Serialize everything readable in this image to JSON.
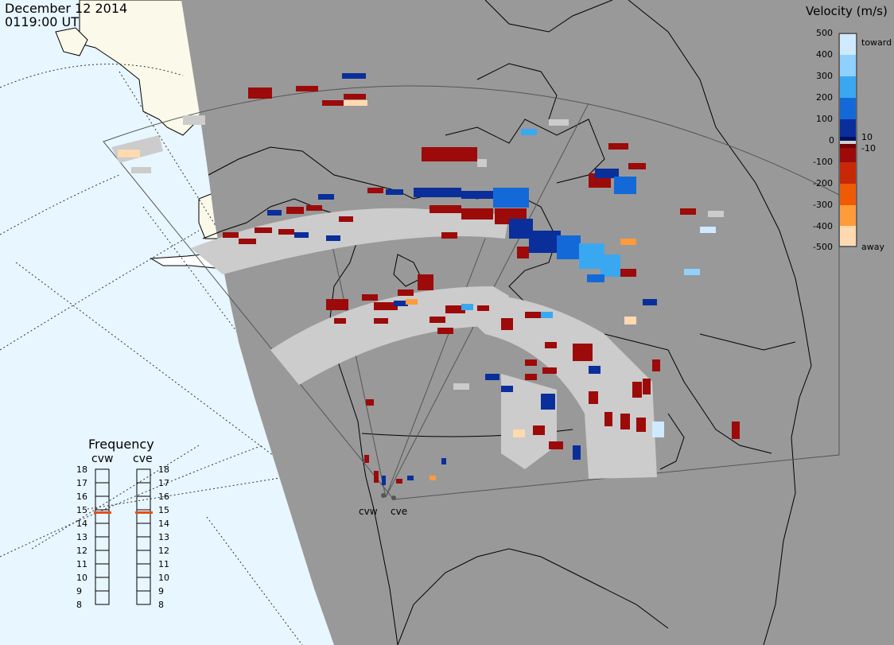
{
  "header": {
    "date": "December 12 2014",
    "time": "0119:00 UT"
  },
  "velocity_legend": {
    "title": "Velocity (m/s)",
    "ticks": [
      "500",
      "400",
      "300",
      "200",
      "100",
      "10",
      "0",
      "-10",
      "-100",
      "-200",
      "-300",
      "-400",
      "-500"
    ],
    "toward_label": "toward",
    "away_label": "away",
    "colors": {
      "toward_500": "#cfeaff",
      "toward_400": "#8fd0ff",
      "toward_300": "#3aa8f0",
      "toward_200": "#1469d8",
      "toward_100": "#0a2f9a",
      "toward_10": "#001060",
      "zero": "#d0d0d0",
      "away_10": "#700000",
      "away_100": "#9c0a0a",
      "away_200": "#c82808",
      "away_300": "#ee5a06",
      "away_400": "#ff9b3a",
      "away_500": "#ffd9b0",
      "ground_scatter": "#cccccc"
    }
  },
  "frequency_panel": {
    "title": "Frequency",
    "radars": [
      "cvw",
      "cve"
    ],
    "scale": [
      "18",
      "17",
      "16",
      "15",
      "14",
      "13",
      "12",
      "11",
      "10",
      "9",
      "8"
    ],
    "selected": {
      "cvw": 15,
      "cve": 15
    }
  },
  "radar_sites": [
    {
      "name": "cvw"
    },
    {
      "name": "cve"
    }
  ],
  "map_colors": {
    "ocean_sunlit": "#e8f6ff",
    "land_sunlit": "#fbfaea",
    "night_region": "#999999",
    "coastline": "#000000"
  }
}
